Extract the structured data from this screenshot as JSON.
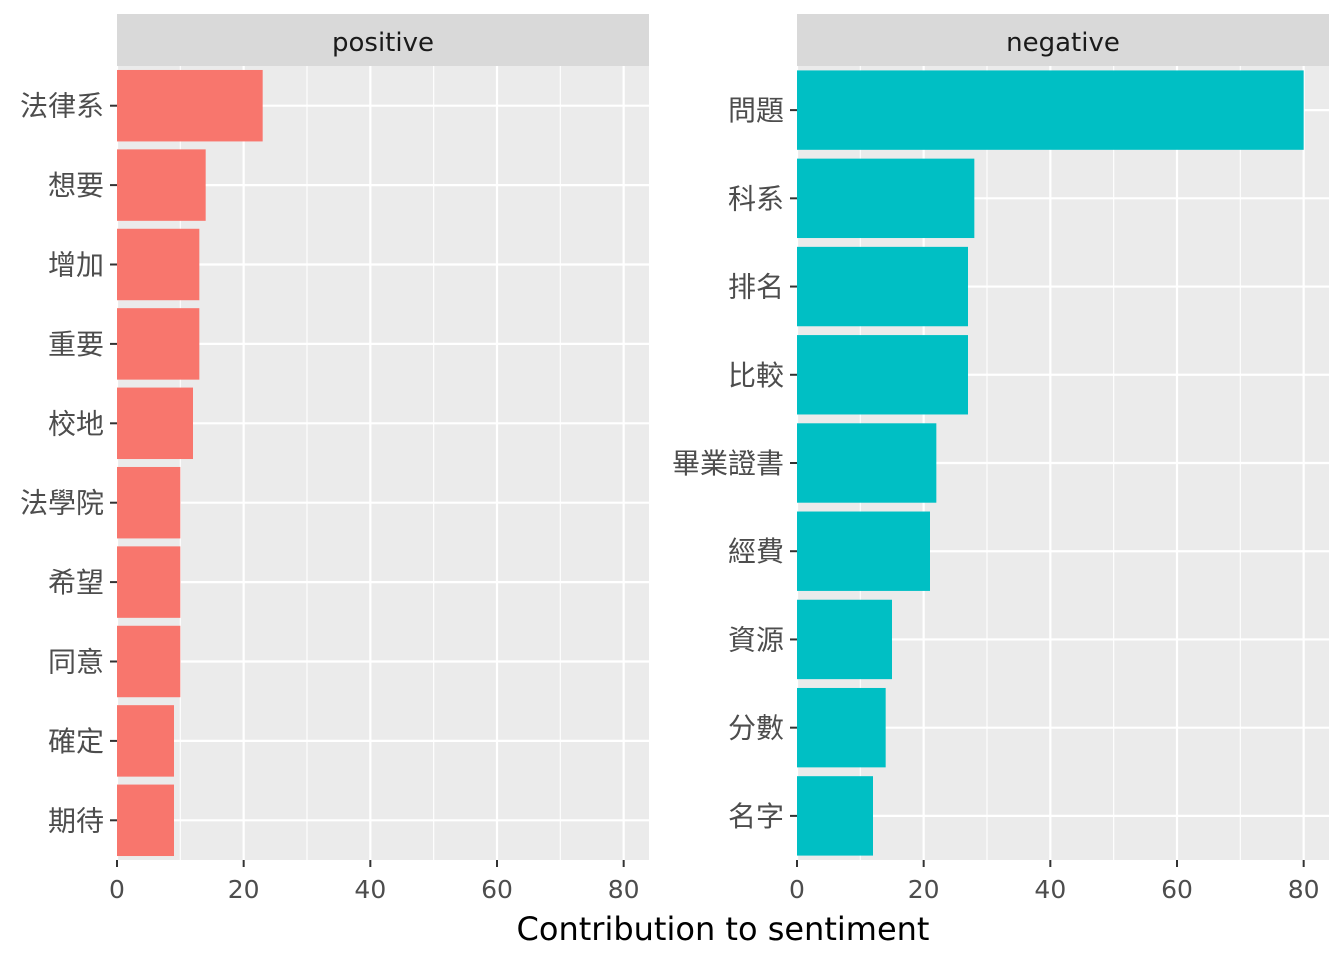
{
  "chart_data": {
    "type": "bar",
    "orientation": "horizontal",
    "xlabel": "Contribution to sentiment",
    "xlim": [
      0,
      84
    ],
    "xticks": [
      0,
      20,
      40,
      60,
      80
    ],
    "grid": true,
    "panels": [
      {
        "name": "positive",
        "color": "#F8766D",
        "categories": [
          "法律系",
          "想要",
          "增加",
          "重要",
          "校地",
          "法學院",
          "希望",
          "同意",
          "確定",
          "期待"
        ],
        "values": [
          23,
          14,
          13,
          13,
          12,
          10,
          10,
          10,
          9,
          9
        ]
      },
      {
        "name": "negative",
        "color": "#00BFC4",
        "categories": [
          "問題",
          "科系",
          "排名",
          "比較",
          "畢業證書",
          "經費",
          "資源",
          "分數",
          "名字"
        ],
        "values": [
          80,
          28,
          27,
          27,
          22,
          21,
          15,
          14,
          12
        ]
      }
    ]
  }
}
